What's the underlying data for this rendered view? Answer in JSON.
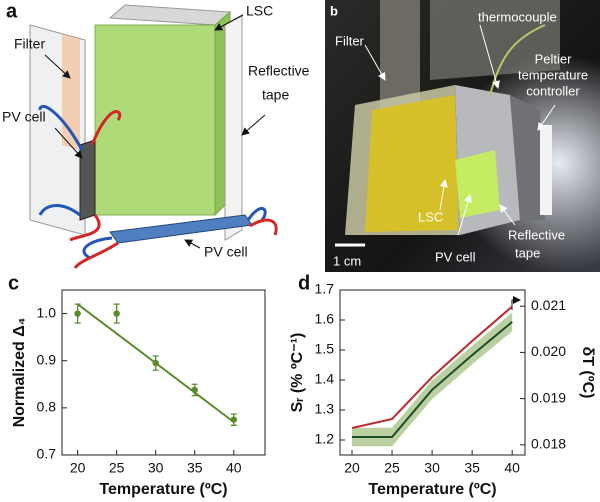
{
  "panel_a": {
    "letter": "a",
    "filter": "Filter",
    "lsc": "LSC",
    "reflective_tape": [
      "Reflective",
      "tape"
    ],
    "pv_cell_left": "PV cell",
    "pv_cell_bottom": "PV cell"
  },
  "panel_b": {
    "letter": "b",
    "filter": "Filter",
    "thermocouple": "thermocouple",
    "peltier": [
      "Peltier",
      "temperature",
      "controller"
    ],
    "lsc": "LSC",
    "pv_cell": "PV cell",
    "reflective_tape": [
      "Reflective",
      "tape"
    ],
    "scale_bar": "1 cm"
  },
  "chart_data": [
    {
      "type": "scatter",
      "panel_label": "c",
      "x_label": "Temperature (ºC)",
      "y_label": "Normalized Δ₄",
      "x": [
        20,
        25,
        30,
        35,
        40
      ],
      "series": [
        {
          "style": "markers",
          "color": "#5b8c2a",
          "values": [
            1.0,
            1.0,
            0.895,
            0.838,
            0.775
          ],
          "errors": [
            0.02,
            0.02,
            0.015,
            0.012,
            0.012
          ]
        },
        {
          "style": "line",
          "color": "#5b8c2a",
          "x": [
            20,
            40
          ],
          "values": [
            1.02,
            0.77
          ]
        }
      ],
      "xlim": [
        18,
        44
      ],
      "ylim": [
        0.7,
        1.05
      ],
      "xticks": [
        20,
        25,
        30,
        35,
        40
      ],
      "yticks": [
        0.7,
        0.8,
        0.9,
        {
          "value": 1,
          "label": "1.0"
        }
      ]
    },
    {
      "type": "line",
      "panel_label": "d",
      "x_label": "Temperature (ºC)",
      "y_label": "Sᵣ (% ºC⁻¹)",
      "y2_label": "δT (ºC)",
      "x": [
        20,
        25,
        30,
        35,
        40
      ],
      "series": [
        {
          "style": "line",
          "color": "#c0282d",
          "values": [
            1.24,
            1.27,
            1.41,
            1.53,
            1.645
          ]
        },
        {
          "style": "band",
          "axis": "y2",
          "color": "#1f4d2a",
          "band_color": "#a9c48a",
          "values": [
            0.01817,
            0.01817,
            0.01919,
            0.01994,
            0.02066
          ],
          "errors": [
            0.0002,
            0.0002,
            0.0002,
            0.0002,
            0.0002
          ]
        }
      ],
      "xlim": [
        18.5,
        41.6
      ],
      "ylim": [
        1.15,
        1.7
      ],
      "y2lim": [
        0.01778,
        0.02135
      ],
      "xticks": [
        20,
        25,
        30,
        35,
        40
      ],
      "yticks": [
        1.2,
        1.3,
        1.4,
        1.5,
        1.6,
        1.7
      ],
      "y2ticks": [
        0.018,
        0.019,
        {
          "value": 0.02,
          "label": "0.020"
        },
        0.021
      ]
    }
  ]
}
